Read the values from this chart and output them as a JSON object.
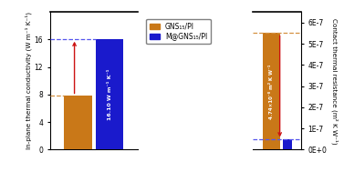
{
  "left_bars": {
    "values": [
      7.8,
      16.1
    ],
    "colors": [
      "#c97818",
      "#1a1acc"
    ],
    "ylim": [
      0,
      20
    ],
    "yticks": [
      0,
      4,
      8,
      12,
      16
    ],
    "ylabel": "In-plane thermal conductivity (W m⁻¹ K⁻¹)",
    "bar_label": "16.10 W m⁻¹ K⁻¹"
  },
  "right_bars": {
    "values": [
      5.5e-07,
      4.74e-08
    ],
    "colors": [
      "#c97818",
      "#1a1acc"
    ],
    "ylim": [
      0,
      6.5e-07
    ],
    "yticks": [
      0,
      1e-07,
      2e-07,
      3e-07,
      4e-07,
      5e-07,
      6e-07
    ],
    "ytick_labels": [
      "0E+0",
      "1E-7",
      "2E-7",
      "3E-7",
      "4E-7",
      "5E-7",
      "6E-7"
    ],
    "ylabel": "Contact thermal resistance (m² K W⁻¹)",
    "bar_label": "4.74×10⁻⁸ m² K W⁻¹"
  },
  "legend_labels": [
    "GNS₁₅/PI",
    "M@GNS₁₅/PI"
  ],
  "legend_colors": [
    "#c97818",
    "#1a1acc"
  ],
  "arrow_color": "#cc1111",
  "dashed_color_orange": "#d49040",
  "dashed_color_blue": "#5555ee"
}
